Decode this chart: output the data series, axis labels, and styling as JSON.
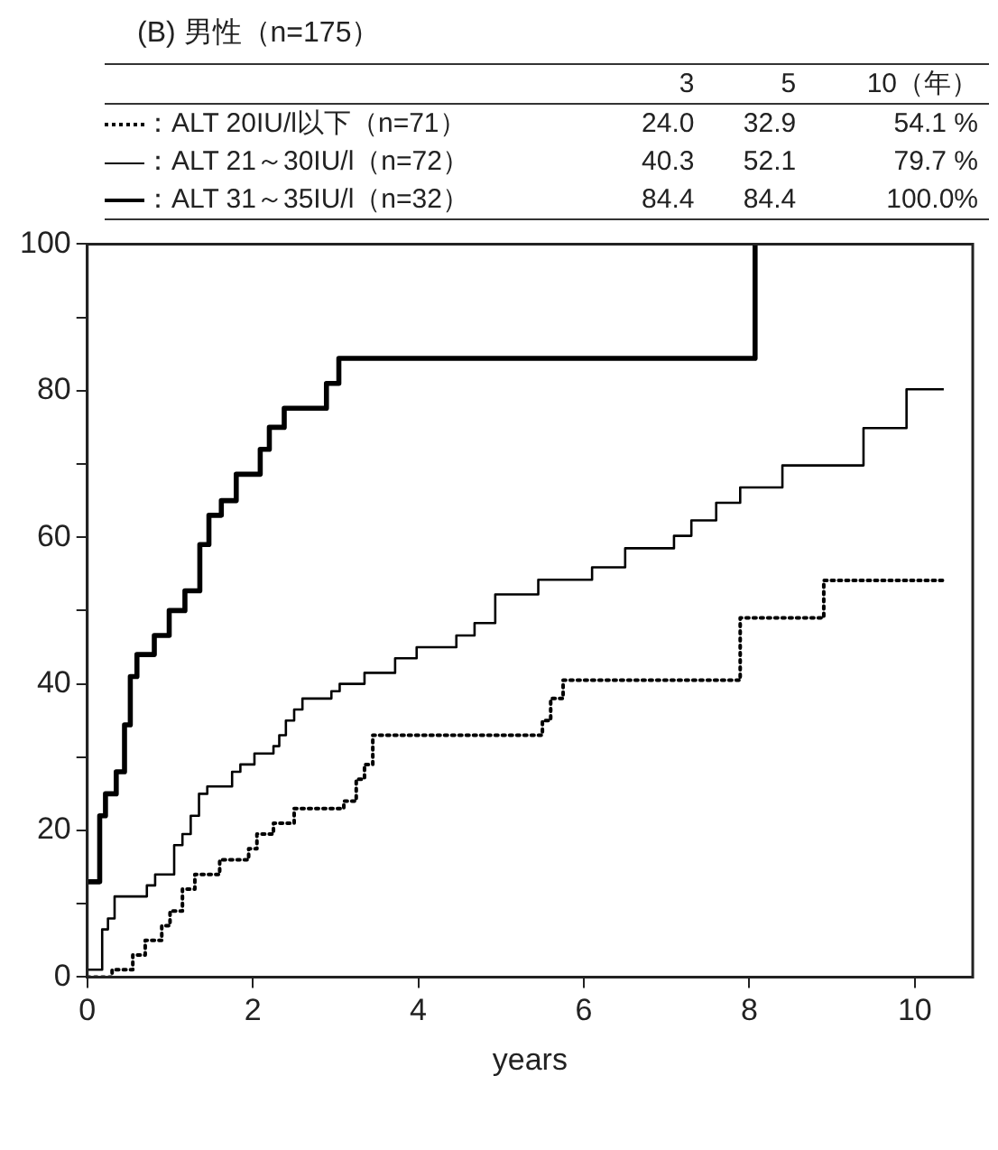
{
  "chart_data": {
    "type": "step",
    "title": "(B) 男性（n=175）",
    "xlabel": "years",
    "legend": "top",
    "annotations": [
      "3",
      "5",
      "10（年）",
      "24.0",
      "32.9",
      "54.1 %",
      "40.3",
      "52.1",
      "79.7 %",
      "84.4",
      "84.4",
      "100.0%"
    ],
    "xlim": [
      0,
      10.7
    ],
    "ylim": [
      0,
      100
    ],
    "xticks": [
      0,
      2,
      4,
      6,
      8,
      10
    ],
    "yticks": [
      0,
      {
        "value": 10,
        "label": null
      },
      20,
      {
        "value": 30,
        "label": null
      },
      40,
      {
        "value": 50,
        "label": null
      },
      60,
      {
        "value": 70,
        "label": null
      },
      80,
      {
        "value": 90,
        "label": null
      },
      100
    ],
    "grid": false,
    "series": [
      {
        "name": "：ALT 20IU/l以下（n=71）",
        "color": "#000000",
        "line_style": "dotted",
        "x": [
          0,
          0.3,
          0.55,
          0.7,
          0.9,
          1.0,
          1.15,
          1.3,
          1.6,
          1.95,
          2.05,
          2.25,
          2.5,
          3.1,
          3.25,
          3.35,
          3.45,
          5.5,
          5.6,
          5.75,
          7.89,
          8.9,
          10.37
        ],
        "values": [
          0,
          1,
          3,
          5,
          7,
          9,
          12,
          14,
          16,
          17.5,
          19.5,
          21,
          23,
          24,
          27,
          29,
          33,
          35,
          38,
          40.5,
          49,
          54.1,
          54.1
        ]
      },
      {
        "name": "：ALT 21～30IU/l（n=72）",
        "color": "#000000",
        "line_style": "solid",
        "x": [
          0,
          0.18,
          0.25,
          0.33,
          0.72,
          0.82,
          1.05,
          1.15,
          1.25,
          1.35,
          1.45,
          1.75,
          1.85,
          2.02,
          2.25,
          2.32,
          2.4,
          2.5,
          2.6,
          2.95,
          3.05,
          3.35,
          3.72,
          3.98,
          4.46,
          4.68,
          4.93,
          5.45,
          6.1,
          6.5,
          7.09,
          7.3,
          7.6,
          7.89,
          8.4,
          9.38,
          9.9,
          10.35
        ],
        "values": [
          1,
          6.5,
          8,
          11,
          12.5,
          14,
          18,
          19.5,
          22,
          25,
          26,
          28,
          29,
          30.5,
          31.5,
          33,
          35,
          36.5,
          38,
          39,
          40,
          41.5,
          43.5,
          45,
          46.6,
          48.3,
          52.2,
          54.2,
          55.9,
          58.5,
          60.2,
          62.3,
          64.7,
          66.8,
          69.8,
          74.9,
          80.2,
          80.2
        ]
      },
      {
        "name": "：ALT 31～35IU/l（n=32）",
        "color": "#000000",
        "line_style": "solid",
        "x": [
          0,
          0.15,
          0.22,
          0.35,
          0.45,
          0.52,
          0.6,
          0.81,
          0.99,
          1.18,
          1.36,
          1.47,
          1.62,
          1.8,
          2.09,
          2.2,
          2.38,
          2.89,
          3.04,
          8.07
        ],
        "values": [
          13,
          22,
          25,
          28,
          34.4,
          41,
          44,
          46.6,
          50,
          52.7,
          59,
          63,
          65,
          68.6,
          72,
          75,
          77.6,
          81,
          84.4,
          100
        ]
      }
    ]
  }
}
